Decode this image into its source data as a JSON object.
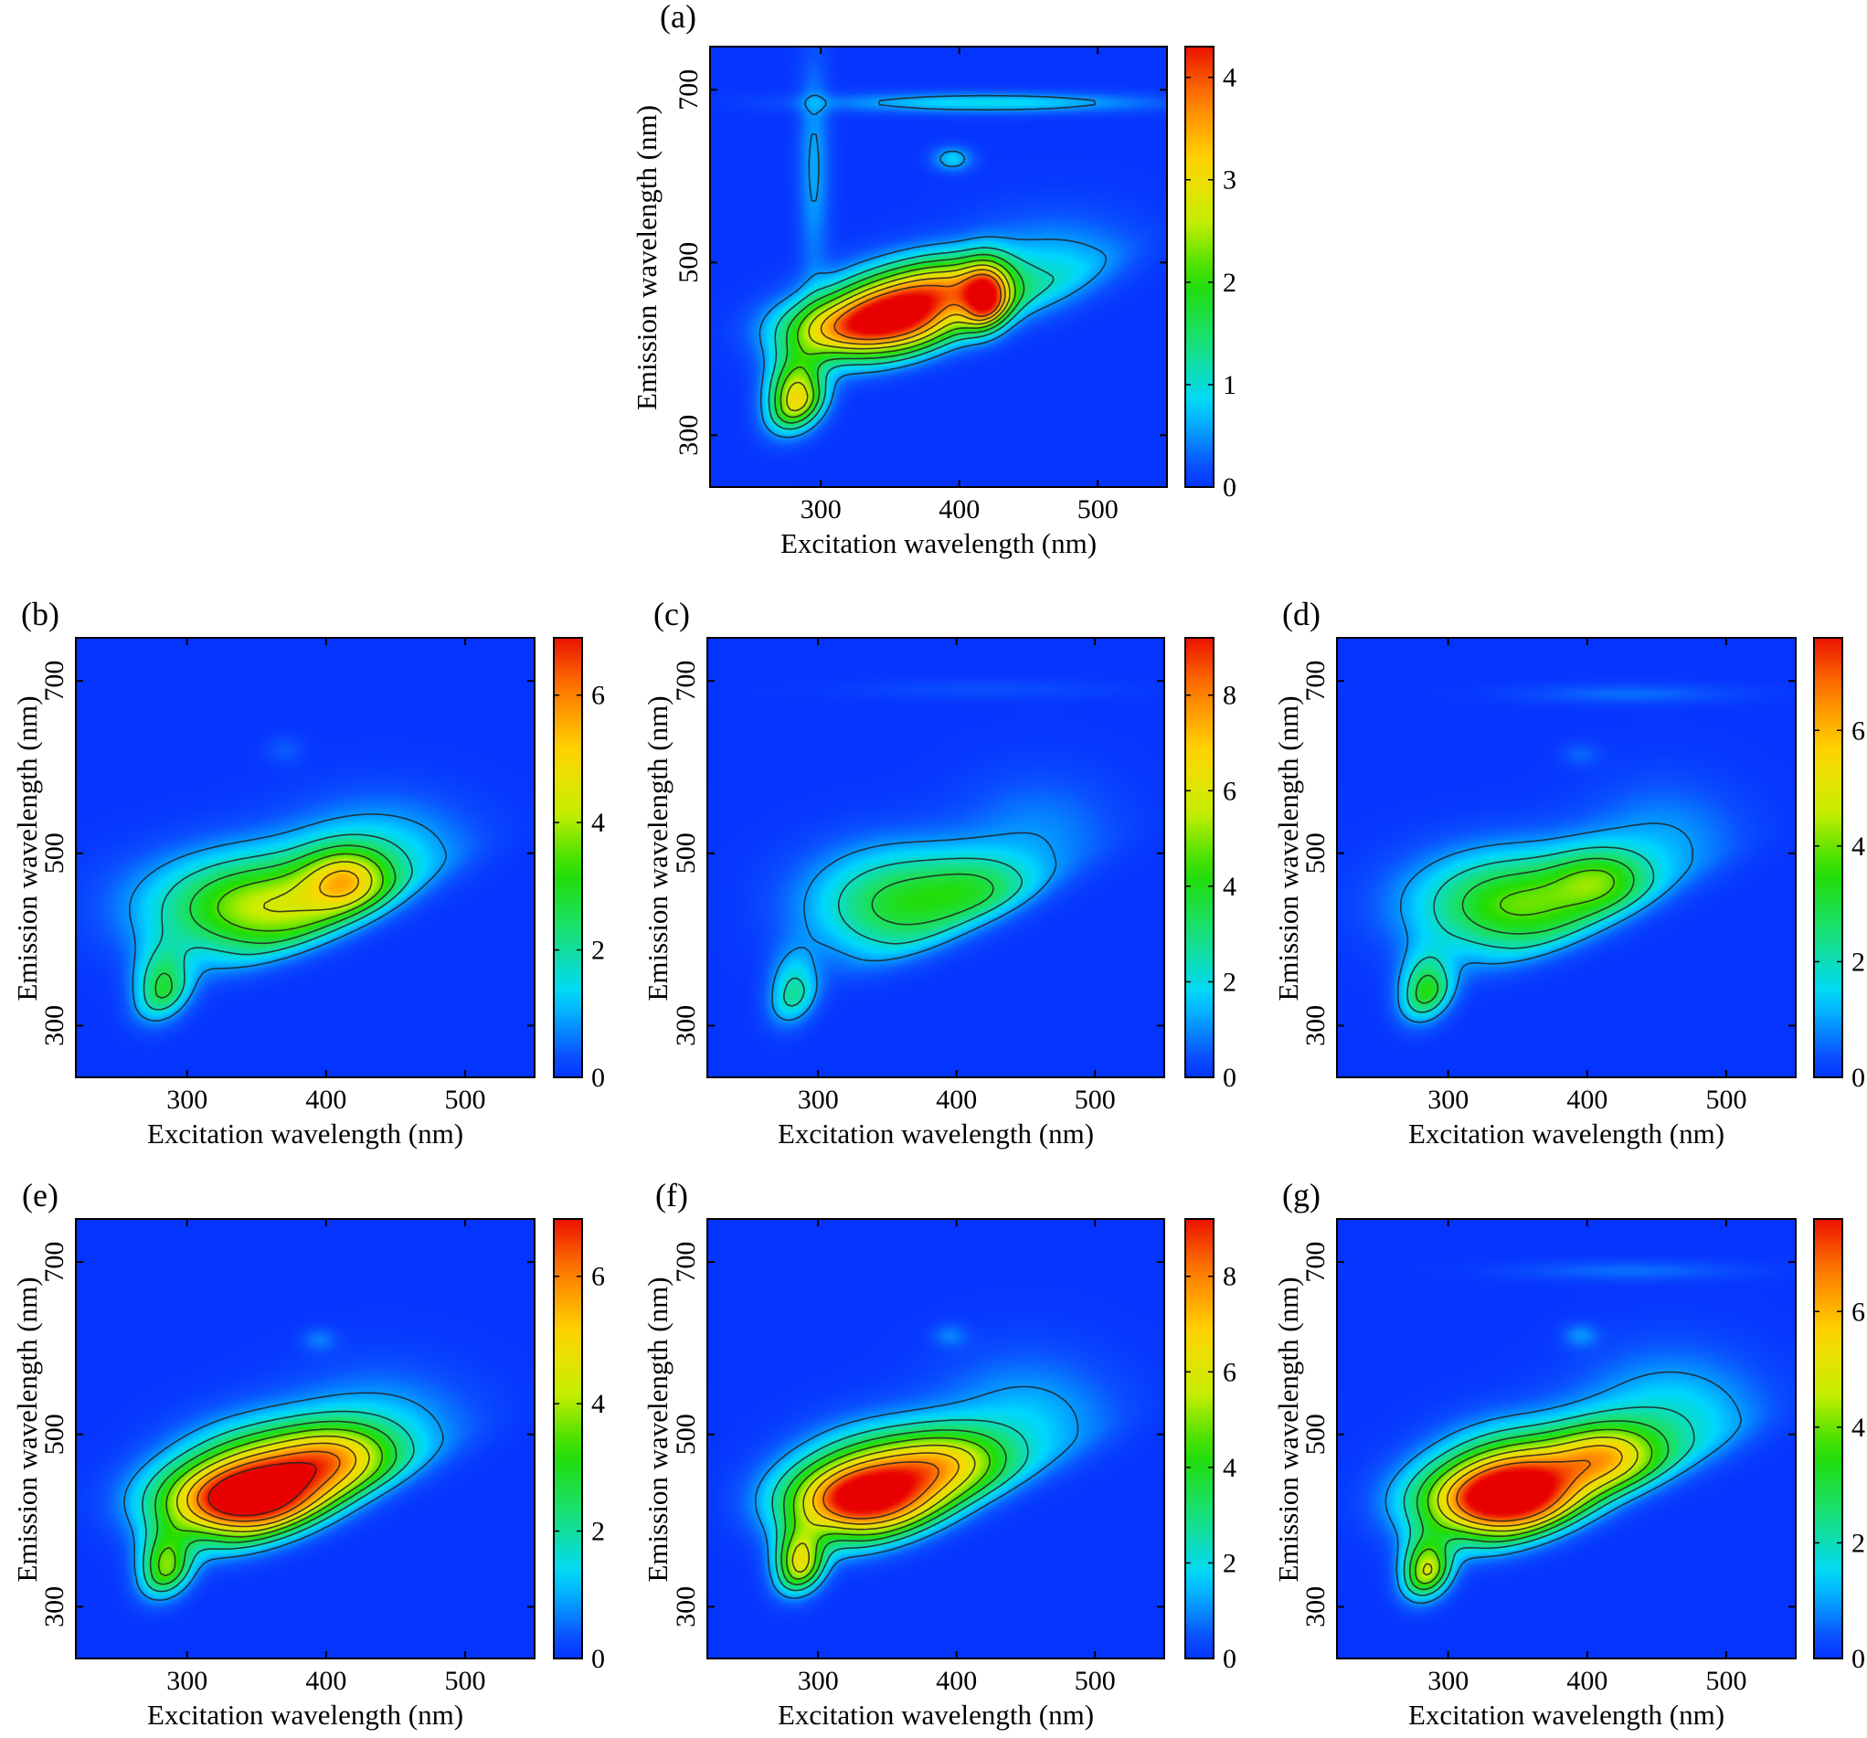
{
  "chart_data": [
    {
      "type": "heatmap",
      "label": "(a)",
      "xlabel": "Excitation wavelength (nm)",
      "ylabel": "Emission wavelength (nm)",
      "xlim": [
        220,
        550
      ],
      "ylim": [
        240,
        750
      ],
      "xticks": [
        300,
        400,
        500
      ],
      "yticks": [
        300,
        500,
        700
      ],
      "colorbar": {
        "min": 0,
        "max": 4.3,
        "ticks": [
          0,
          1,
          2,
          3,
          4
        ]
      },
      "peaks": [
        {
          "ex": 355,
          "em": 440,
          "intensity": 4.2,
          "sx": 32,
          "sy": 30
        },
        {
          "ex": 283,
          "em": 340,
          "intensity": 3.1,
          "sx": 14,
          "sy": 35
        },
        {
          "ex": 420,
          "em": 455,
          "intensity": 2.8,
          "sx": 12,
          "sy": 30
        },
        {
          "ex": 310,
          "em": 420,
          "intensity": 2.4,
          "sx": 30,
          "sy": 25
        },
        {
          "ex": 395,
          "em": 475,
          "intensity": 2.2,
          "sx": 30,
          "sy": 25
        },
        {
          "ex": 420,
          "em": 685,
          "intensity": 0.9,
          "sx": 80,
          "sy": 8
        },
        {
          "ex": 395,
          "em": 620,
          "intensity": 0.8,
          "sx": 10,
          "sy": 10
        },
        {
          "ex": 295,
          "em": 610,
          "intensity": 0.6,
          "sx": 8,
          "sy": 90
        },
        {
          "ex": 470,
          "em": 470,
          "intensity": 1.0,
          "sx": 45,
          "sy": 50
        }
      ]
    },
    {
      "type": "heatmap",
      "label": "(b)",
      "xlabel": "Excitation wavelength (nm)",
      "ylabel": "Emission wavelength (nm)",
      "xlim": [
        220,
        550
      ],
      "ylim": [
        240,
        750
      ],
      "xticks": [
        300,
        400,
        500
      ],
      "yticks": [
        300,
        500,
        700
      ],
      "colorbar": {
        "min": 0,
        "max": 6.9,
        "ticks": [
          0,
          2,
          4,
          6
        ]
      },
      "peaks": [
        {
          "ex": 357,
          "em": 437,
          "intensity": 4.2,
          "sx": 55,
          "sy": 42
        },
        {
          "ex": 283,
          "em": 340,
          "intensity": 2.7,
          "sx": 14,
          "sy": 35
        },
        {
          "ex": 415,
          "em": 470,
          "intensity": 2.9,
          "sx": 22,
          "sy": 26
        },
        {
          "ex": 440,
          "em": 500,
          "intensity": 1.3,
          "sx": 45,
          "sy": 45
        },
        {
          "ex": 370,
          "em": 620,
          "intensity": 0.4,
          "sx": 10,
          "sy": 12
        }
      ]
    },
    {
      "type": "heatmap",
      "label": "(c)",
      "xlabel": "Excitation wavelength (nm)",
      "ylabel": "Emission wavelength (nm)",
      "xlim": [
        220,
        550
      ],
      "ylim": [
        240,
        750
      ],
      "xticks": [
        300,
        400,
        500
      ],
      "yticks": [
        300,
        500,
        700
      ],
      "colorbar": {
        "min": 0,
        "max": 9.2,
        "ticks": [
          0,
          2,
          4,
          6,
          8
        ]
      },
      "peaks": [
        {
          "ex": 360,
          "em": 440,
          "intensity": 3.8,
          "sx": 45,
          "sy": 45
        },
        {
          "ex": 283,
          "em": 330,
          "intensity": 2.8,
          "sx": 12,
          "sy": 35
        },
        {
          "ex": 420,
          "em": 460,
          "intensity": 2.0,
          "sx": 30,
          "sy": 28
        },
        {
          "ex": 460,
          "em": 520,
          "intensity": 1.0,
          "sx": 40,
          "sy": 50
        },
        {
          "ex": 420,
          "em": 690,
          "intensity": 0.4,
          "sx": 70,
          "sy": 8
        }
      ]
    },
    {
      "type": "heatmap",
      "label": "(d)",
      "xlabel": "Excitation wavelength (nm)",
      "ylabel": "Emission wavelength (nm)",
      "xlim": [
        220,
        550
      ],
      "ylim": [
        240,
        750
      ],
      "xticks": [
        300,
        400,
        500
      ],
      "yticks": [
        300,
        500,
        700
      ],
      "colorbar": {
        "min": 0,
        "max": 7.6,
        "ticks": [
          0,
          2,
          4,
          6
        ]
      },
      "peaks": [
        {
          "ex": 350,
          "em": 440,
          "intensity": 3.9,
          "sx": 50,
          "sy": 42
        },
        {
          "ex": 285,
          "em": 335,
          "intensity": 3.4,
          "sx": 13,
          "sy": 32
        },
        {
          "ex": 410,
          "em": 470,
          "intensity": 2.3,
          "sx": 25,
          "sy": 26
        },
        {
          "ex": 455,
          "em": 510,
          "intensity": 1.0,
          "sx": 40,
          "sy": 50
        },
        {
          "ex": 430,
          "em": 685,
          "intensity": 0.6,
          "sx": 55,
          "sy": 8
        },
        {
          "ex": 395,
          "em": 615,
          "intensity": 0.5,
          "sx": 10,
          "sy": 10
        }
      ]
    },
    {
      "type": "heatmap",
      "label": "(e)",
      "xlabel": "Excitation wavelength (nm)",
      "ylabel": "Emission wavelength (nm)",
      "xlim": [
        220,
        550
      ],
      "ylim": [
        240,
        750
      ],
      "xticks": [
        300,
        400,
        500
      ],
      "yticks": [
        300,
        500,
        700
      ],
      "colorbar": {
        "min": 0,
        "max": 6.9,
        "ticks": [
          0,
          2,
          4,
          6
        ]
      },
      "peaks": [
        {
          "ex": 360,
          "em": 440,
          "intensity": 6.3,
          "sx": 40,
          "sy": 42
        },
        {
          "ex": 285,
          "em": 345,
          "intensity": 3.6,
          "sx": 13,
          "sy": 30
        },
        {
          "ex": 320,
          "em": 420,
          "intensity": 3.8,
          "sx": 35,
          "sy": 30
        },
        {
          "ex": 410,
          "em": 475,
          "intensity": 3.0,
          "sx": 30,
          "sy": 28
        },
        {
          "ex": 440,
          "em": 500,
          "intensity": 1.2,
          "sx": 45,
          "sy": 50
        },
        {
          "ex": 395,
          "em": 610,
          "intensity": 0.6,
          "sx": 9,
          "sy": 10
        }
      ]
    },
    {
      "type": "heatmap",
      "label": "(f)",
      "xlabel": "Excitation wavelength (nm)",
      "ylabel": "Emission wavelength (nm)",
      "xlim": [
        220,
        550
      ],
      "ylim": [
        240,
        750
      ],
      "xticks": [
        300,
        400,
        500
      ],
      "yticks": [
        300,
        500,
        700
      ],
      "colorbar": {
        "min": 0,
        "max": 9.2,
        "ticks": [
          0,
          2,
          4,
          6,
          8
        ]
      },
      "peaks": [
        {
          "ex": 352,
          "em": 440,
          "intensity": 7.6,
          "sx": 38,
          "sy": 40
        },
        {
          "ex": 287,
          "em": 350,
          "intensity": 6.0,
          "sx": 12,
          "sy": 28
        },
        {
          "ex": 315,
          "em": 420,
          "intensity": 5.2,
          "sx": 32,
          "sy": 30
        },
        {
          "ex": 400,
          "em": 470,
          "intensity": 3.6,
          "sx": 30,
          "sy": 28
        },
        {
          "ex": 450,
          "em": 510,
          "intensity": 1.6,
          "sx": 45,
          "sy": 55
        },
        {
          "ex": 395,
          "em": 615,
          "intensity": 0.8,
          "sx": 9,
          "sy": 10
        }
      ]
    },
    {
      "type": "heatmap",
      "label": "(g)",
      "xlabel": "Excitation wavelength (nm)",
      "ylabel": "Emission wavelength (nm)",
      "xlim": [
        220,
        550
      ],
      "ylim": [
        240,
        750
      ],
      "xticks": [
        300,
        400,
        500
      ],
      "yticks": [
        300,
        500,
        700
      ],
      "colorbar": {
        "min": 0,
        "max": 7.6,
        "ticks": [
          0,
          2,
          4,
          6
        ]
      },
      "peaks": [
        {
          "ex": 355,
          "em": 440,
          "intensity": 6.9,
          "sx": 38,
          "sy": 40
        },
        {
          "ex": 285,
          "em": 340,
          "intensity": 4.8,
          "sx": 12,
          "sy": 28
        },
        {
          "ex": 320,
          "em": 420,
          "intensity": 4.2,
          "sx": 35,
          "sy": 30
        },
        {
          "ex": 415,
          "em": 475,
          "intensity": 4.0,
          "sx": 28,
          "sy": 28
        },
        {
          "ex": 460,
          "em": 510,
          "intensity": 1.8,
          "sx": 45,
          "sy": 55
        },
        {
          "ex": 395,
          "em": 615,
          "intensity": 0.8,
          "sx": 9,
          "sy": 10
        },
        {
          "ex": 430,
          "em": 690,
          "intensity": 0.6,
          "sx": 60,
          "sy": 8
        }
      ]
    }
  ],
  "colorscale": [
    "#0000ff",
    "#0a52ff",
    "#00d8ff",
    "#19e07a",
    "#22dd00",
    "#c8ee00",
    "#ffd500",
    "#ff7a00",
    "#e80000"
  ]
}
